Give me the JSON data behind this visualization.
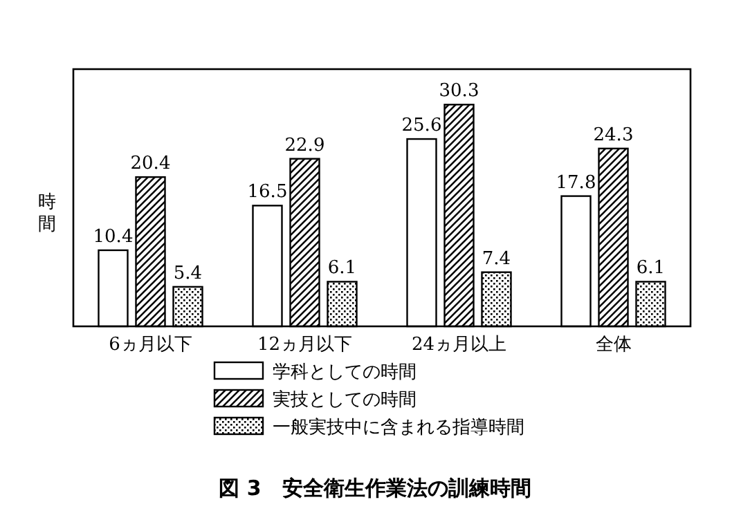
{
  "chart_data": {
    "type": "bar",
    "title": "図 3　安全衛生作業法の訓練時間",
    "ylabel": "時間",
    "categories": [
      "6ヵ月以下",
      "12ヵ月以下",
      "24ヵ月以上",
      "全体"
    ],
    "series": [
      {
        "name": "学科としての時間",
        "color": "#ffffff",
        "values": [
          10.4,
          16.5,
          25.6,
          17.8
        ]
      },
      {
        "name": "実技としての時間",
        "color": "#000000",
        "values": [
          20.4,
          22.9,
          30.3,
          24.3
        ]
      },
      {
        "name": "一般実技中に含まれる指導時間",
        "color": "#000000",
        "values": [
          5.4,
          6.1,
          7.4,
          6.1
        ]
      }
    ],
    "data_labels": true,
    "legend": "bottom"
  }
}
